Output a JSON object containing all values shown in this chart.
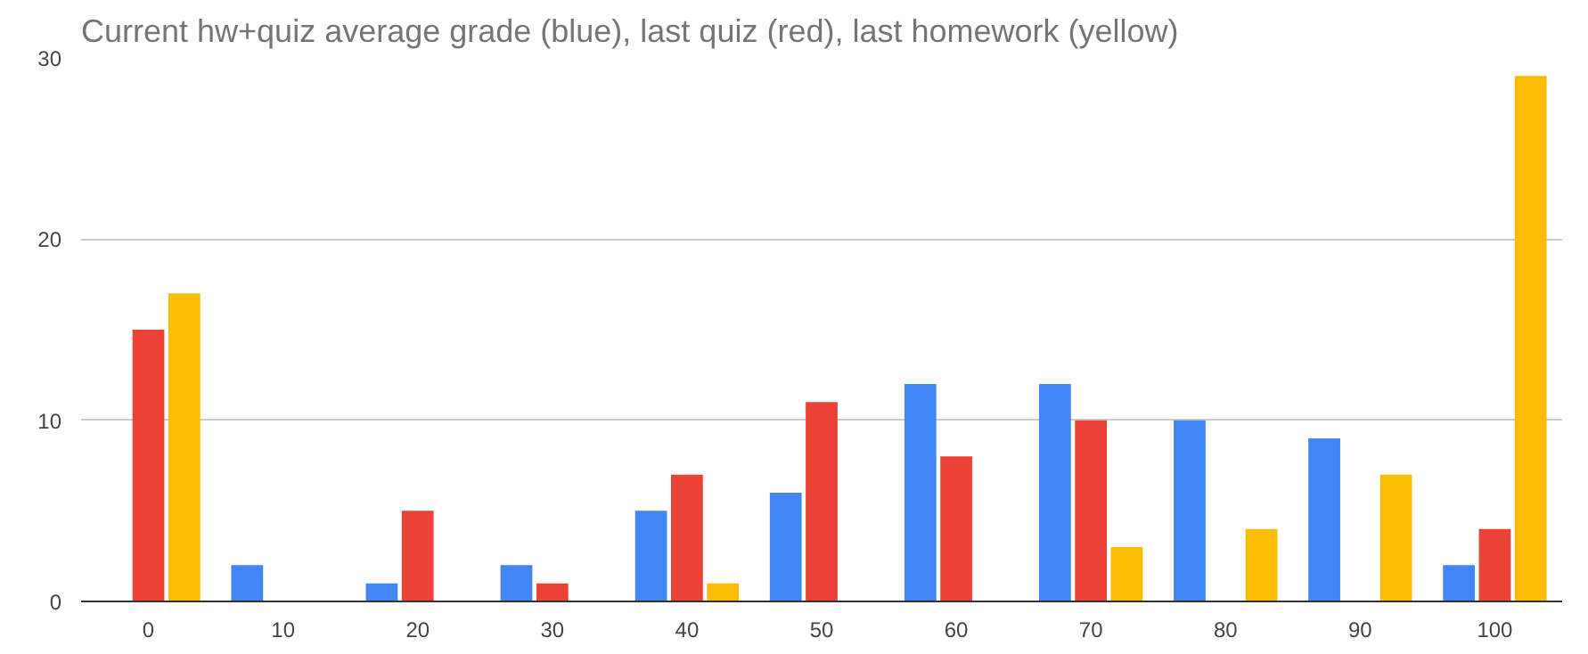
{
  "chart_data": {
    "type": "bar",
    "title": "Current hw+quiz average grade (blue), last quiz (red), last homework (yellow)",
    "categories": [
      "0",
      "10",
      "20",
      "30",
      "40",
      "50",
      "60",
      "70",
      "80",
      "90",
      "100"
    ],
    "series": [
      {
        "color": "#4285f4",
        "values": [
          0,
          2,
          1,
          2,
          5,
          6,
          12,
          12,
          10,
          9,
          2
        ]
      },
      {
        "color": "#ea4335",
        "values": [
          15,
          0,
          5,
          1,
          7,
          11,
          8,
          10,
          0,
          0,
          4
        ]
      },
      {
        "color": "#fbbc04",
        "values": [
          17,
          0,
          0,
          0,
          1,
          0,
          0,
          3,
          4,
          7,
          29
        ]
      }
    ],
    "ylim": [
      0,
      30
    ],
    "yticks": [
      0,
      10,
      20,
      30
    ],
    "grid": "y"
  }
}
